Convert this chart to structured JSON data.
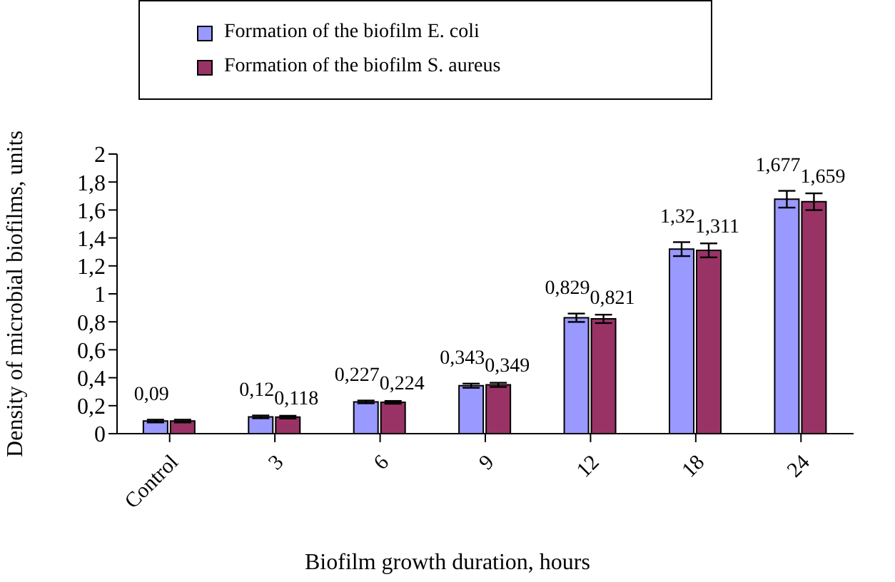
{
  "chart_data": {
    "type": "bar",
    "xlabel": "Biofilm growth duration, hours",
    "ylabel": "Density of microbial biofilms, units",
    "categories": [
      "Control",
      "3",
      "6",
      "9",
      "12",
      "18",
      "24"
    ],
    "series": [
      {
        "name": "Formation of the biofilm E. coli",
        "color": "#9999ff",
        "values": [
          0.09,
          0.12,
          0.227,
          0.343,
          0.829,
          1.32,
          1.677
        ],
        "errors": [
          0.01,
          0.01,
          0.01,
          0.015,
          0.03,
          0.05,
          0.06
        ],
        "value_labels": [
          "0,09",
          "0,12",
          "0,227",
          "0,343",
          "0,829",
          "1,32",
          "1,677"
        ]
      },
      {
        "name": "Formation of the biofilm S. aureus",
        "color": "#993366",
        "values": [
          0.09,
          0.118,
          0.224,
          0.349,
          0.821,
          1.311,
          1.659
        ],
        "errors": [
          0.01,
          0.01,
          0.01,
          0.015,
          0.03,
          0.05,
          0.06
        ],
        "value_labels": [
          null,
          "0,118",
          "0,224",
          "0,349",
          "0,821",
          "1,311",
          "1,659"
        ]
      }
    ],
    "ylim": [
      0,
      2
    ],
    "yticks": [
      {
        "value": 0,
        "label": "0"
      },
      {
        "value": 0.2,
        "label": "0,2"
      },
      {
        "value": 0.4,
        "label": "0,4"
      },
      {
        "value": 0.6,
        "label": "0,6"
      },
      {
        "value": 0.8,
        "label": "0,8"
      },
      {
        "value": 1,
        "label": "1"
      },
      {
        "value": 1.2,
        "label": "1,2"
      },
      {
        "value": 1.4,
        "label": "1,4"
      },
      {
        "value": 1.6,
        "label": "1,6"
      },
      {
        "value": 1.8,
        "label": "1,8"
      },
      {
        "value": 2,
        "label": "2"
      }
    ],
    "grid": false,
    "legend": "top"
  }
}
